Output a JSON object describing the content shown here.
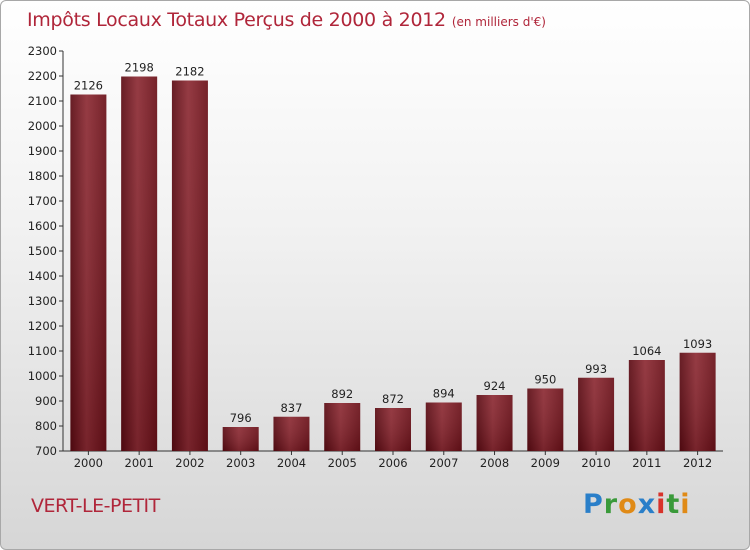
{
  "chart_data": {
    "type": "bar",
    "title": "Impôts Locaux Totaux Perçus de 2000 à 2012",
    "unit_label": "(en milliers d'€)",
    "categories": [
      "2000",
      "2001",
      "2002",
      "2003",
      "2004",
      "2005",
      "2006",
      "2007",
      "2008",
      "2009",
      "2010",
      "2011",
      "2012"
    ],
    "values": [
      2126,
      2198,
      2182,
      796,
      837,
      892,
      872,
      894,
      924,
      950,
      993,
      1064,
      1093
    ],
    "ylim": [
      700,
      2300
    ],
    "yticks": [
      700,
      800,
      900,
      1000,
      1100,
      1200,
      1300,
      1400,
      1500,
      1600,
      1700,
      1800,
      1900,
      2000,
      2100,
      2200,
      2300
    ],
    "xlabel": "",
    "ylabel": "",
    "grid": false,
    "bar_color": "#7a1620"
  },
  "place_name": "VERT-LE-PETIT",
  "logo": {
    "letters": [
      "P",
      "r",
      "o",
      "x",
      "i",
      "t",
      "i"
    ]
  }
}
